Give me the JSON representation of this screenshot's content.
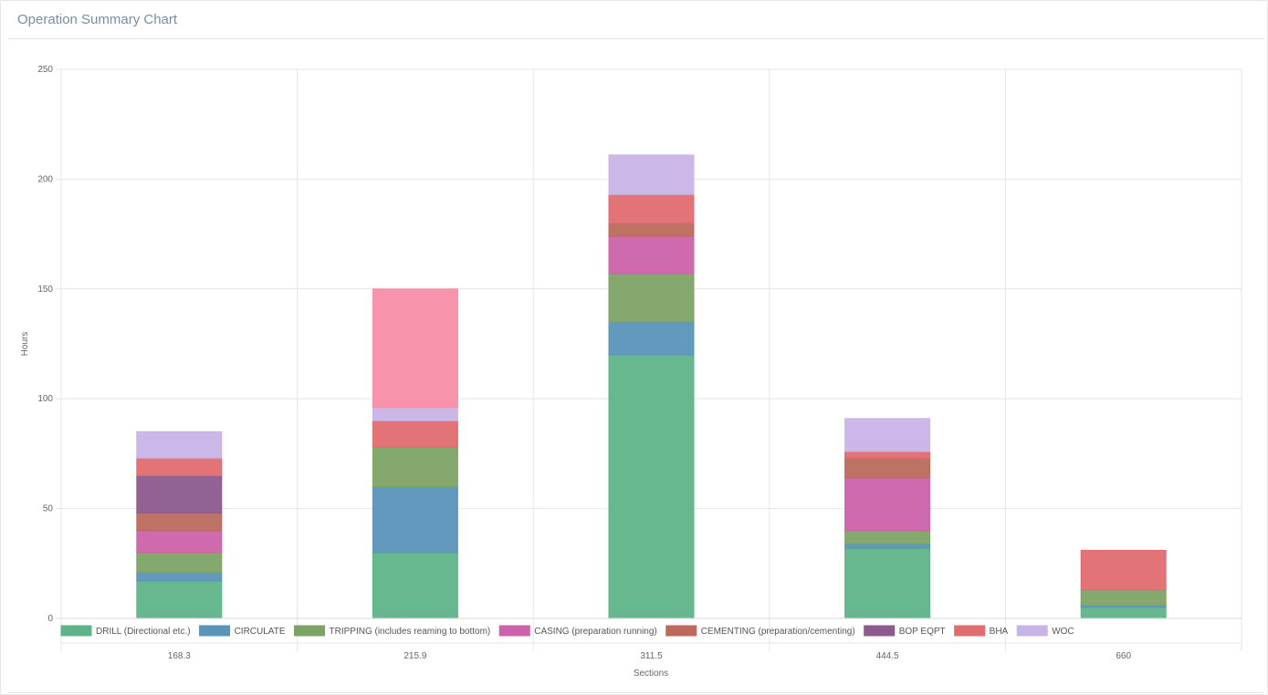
{
  "panel": {
    "title": "Operation Summary Chart"
  },
  "colors": {
    "title": "#7a8ca3",
    "grid": "#e6e6e6",
    "axis_text": "#666666"
  },
  "chart_data": {
    "type": "bar",
    "stacked": true,
    "title": "",
    "xlabel": "Sections",
    "ylabel": "Hours",
    "ylim": [
      0,
      250
    ],
    "yticks": [
      0,
      50,
      100,
      150,
      200,
      250
    ],
    "grid": true,
    "legend_position": "bottom",
    "categories": [
      "168.3",
      "215.9",
      "311.5",
      "444.5",
      "660"
    ],
    "series": [
      {
        "name": "DRILL (Directional etc.)",
        "color": "#5fb389",
        "values": [
          17,
          30,
          120,
          32,
          5
        ]
      },
      {
        "name": "CIRCULATE",
        "color": "#5a94b8",
        "values": [
          4,
          30,
          15,
          2,
          1
        ]
      },
      {
        "name": "TRIPPING (includes reaming to bottom)",
        "color": "#7da366",
        "values": [
          9,
          18,
          22,
          6,
          7
        ]
      },
      {
        "name": "CASING (preparation running)",
        "color": "#cc62ab",
        "values": [
          10,
          0,
          17,
          24,
          0
        ]
      },
      {
        "name": "CEMENTING (preparation/cementing)",
        "color": "#bb6a5c",
        "values": [
          8,
          0,
          6,
          9,
          0
        ]
      },
      {
        "name": "BOP EQPT",
        "color": "#8c5a8e",
        "values": [
          17,
          0,
          0,
          0,
          0
        ]
      },
      {
        "name": "BHA",
        "color": "#e06c6f",
        "values": [
          8,
          12,
          13,
          3,
          18
        ]
      },
      {
        "name": "WOC",
        "color": "#c8b4e7",
        "values": [
          12,
          6,
          18,
          15,
          0
        ]
      },
      {
        "name": "",
        "color": "#f78da6",
        "values": [
          0,
          54,
          0,
          0,
          0
        ]
      }
    ]
  }
}
